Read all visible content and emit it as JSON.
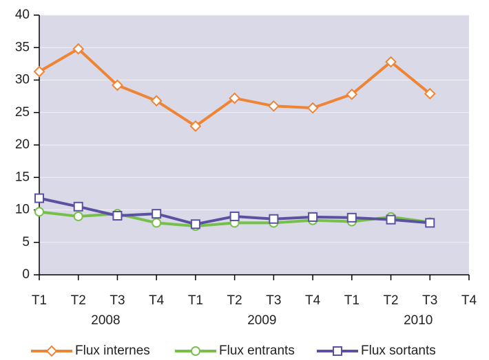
{
  "chart_data": {
    "type": "line",
    "categories": [
      "T1",
      "T2",
      "T3",
      "T4",
      "T1",
      "T2",
      "T3",
      "T4",
      "T1",
      "T2",
      "T3",
      "T4"
    ],
    "groups": [
      {
        "label": "2008",
        "span": 4
      },
      {
        "label": "2009",
        "span": 4
      },
      {
        "label": "2010",
        "span": 4
      }
    ],
    "series": [
      {
        "name": "Flux internes",
        "color": "#ef8435",
        "marker": "diamond",
        "values": [
          31.3,
          34.8,
          29.2,
          26.8,
          22.9,
          27.2,
          26.0,
          25.7,
          27.8,
          32.8,
          27.9,
          null
        ]
      },
      {
        "name": "Flux entrants",
        "color": "#76c04a",
        "marker": "circle",
        "values": [
          9.7,
          9.0,
          9.4,
          8.0,
          7.5,
          8.0,
          8.0,
          8.4,
          8.2,
          8.9,
          8.1,
          null
        ]
      },
      {
        "name": "Flux sortants",
        "color": "#5a51a0",
        "marker": "square",
        "values": [
          11.8,
          10.5,
          9.1,
          9.4,
          7.8,
          9.0,
          8.6,
          8.9,
          8.8,
          8.5,
          8.0,
          null
        ]
      }
    ],
    "ylim": [
      0,
      40
    ],
    "yticks": [
      0,
      5,
      10,
      15,
      20,
      25,
      30,
      35,
      40
    ],
    "grid": true,
    "legend": "bottom"
  }
}
